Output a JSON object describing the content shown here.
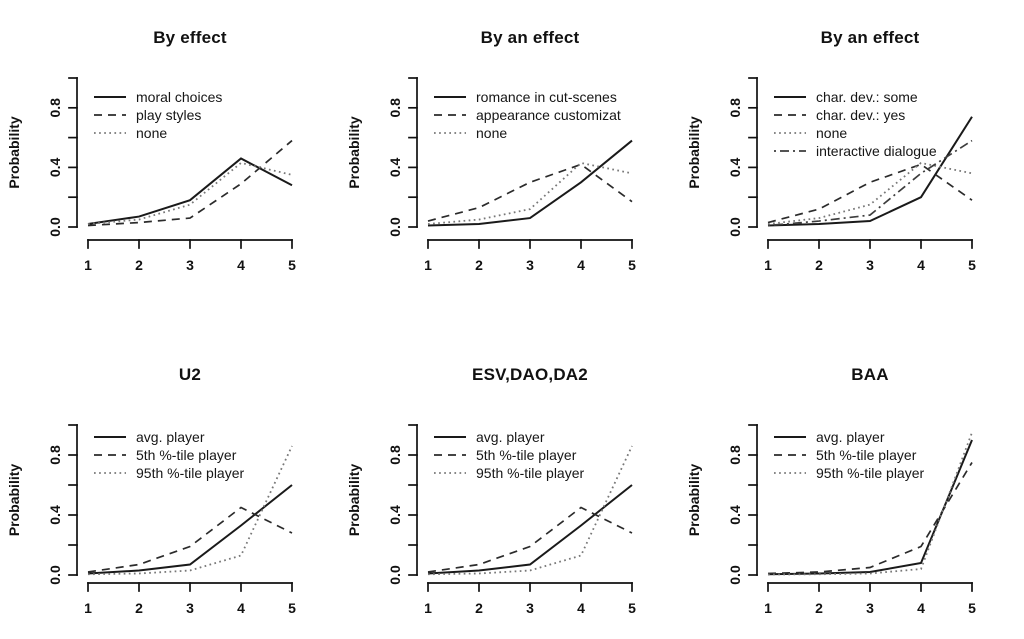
{
  "figure": {
    "background": "#ffffff",
    "axis_color": "#111111",
    "text_color": "#111111",
    "styles": {
      "solid": {
        "color": "#1a1a1a",
        "dash": "",
        "width": 2.0
      },
      "dashed": {
        "color": "#2b2b2b",
        "dash": "8 6",
        "width": 1.7
      },
      "dotted": {
        "color": "#787878",
        "dash": "1.7 3.4",
        "width": 1.8
      },
      "dashdot": {
        "color": "#3d3d3d",
        "dash": "2 4 9 4",
        "width": 1.7
      }
    }
  },
  "axes": {
    "ylabel": "Probability",
    "xtick_labels": [
      "1",
      "2",
      "3",
      "4",
      "5"
    ],
    "ytick_values": [
      0,
      0.2,
      0.4,
      0.6,
      0.8,
      1
    ],
    "ytick_labels": [
      "0.0",
      "",
      "0.4",
      "",
      "0.8",
      ""
    ],
    "xlim": [
      1,
      5
    ],
    "ylim": [
      0,
      1
    ],
    "grid": false
  },
  "chart_data": [
    {
      "type": "line",
      "title": "By effect",
      "ylabel": "Probability",
      "x": [
        1,
        2,
        3,
        4,
        5
      ],
      "legend_position": "top-left",
      "series": [
        {
          "name": "moral choices",
          "style": "solid",
          "values": [
            0.02,
            0.07,
            0.18,
            0.46,
            0.28
          ]
        },
        {
          "name": "play styles",
          "style": "dashed",
          "values": [
            0.01,
            0.03,
            0.06,
            0.29,
            0.58
          ]
        },
        {
          "name": "none",
          "style": "dotted",
          "values": [
            0.02,
            0.05,
            0.15,
            0.43,
            0.35
          ]
        }
      ]
    },
    {
      "type": "line",
      "title": "By an effect",
      "ylabel": "Probability",
      "x": [
        1,
        2,
        3,
        4,
        5
      ],
      "legend_position": "top-left",
      "series": [
        {
          "name": "romance in cut-scenes",
          "style": "solid",
          "values": [
            0.01,
            0.02,
            0.06,
            0.3,
            0.58
          ]
        },
        {
          "name": "appearance customizat",
          "style": "dashed",
          "values": [
            0.04,
            0.13,
            0.3,
            0.42,
            0.17
          ]
        },
        {
          "name": "none",
          "style": "dotted",
          "values": [
            0.02,
            0.05,
            0.12,
            0.43,
            0.36
          ]
        }
      ]
    },
    {
      "type": "line",
      "title": "By an effect",
      "ylabel": "Probability",
      "x": [
        1,
        2,
        3,
        4,
        5
      ],
      "legend_position": "top-left",
      "series": [
        {
          "name": "char. dev.: some",
          "style": "solid",
          "values": [
            0.01,
            0.02,
            0.04,
            0.2,
            0.74
          ]
        },
        {
          "name": "char. dev.: yes",
          "style": "dashed",
          "values": [
            0.03,
            0.12,
            0.3,
            0.42,
            0.18
          ]
        },
        {
          "name": "none",
          "style": "dotted",
          "values": [
            0.02,
            0.06,
            0.15,
            0.43,
            0.36
          ]
        },
        {
          "name": "interactive dialogue",
          "style": "dashdot",
          "values": [
            0.01,
            0.04,
            0.08,
            0.36,
            0.58
          ]
        }
      ]
    },
    {
      "type": "line",
      "title": "U2",
      "ylabel": "Probability",
      "x": [
        1,
        2,
        3,
        4,
        5
      ],
      "legend_position": "top-left",
      "series": [
        {
          "name": "avg. player",
          "style": "solid",
          "values": [
            0.01,
            0.03,
            0.07,
            0.33,
            0.6
          ]
        },
        {
          "name": "5th %-tile player",
          "style": "dashed",
          "values": [
            0.02,
            0.07,
            0.19,
            0.45,
            0.28
          ]
        },
        {
          "name": "95th %-tile player",
          "style": "dotted",
          "values": [
            0.005,
            0.01,
            0.03,
            0.13,
            0.86
          ]
        }
      ]
    },
    {
      "type": "line",
      "title": "ESV,DAO,DA2",
      "ylabel": "Probability",
      "x": [
        1,
        2,
        3,
        4,
        5
      ],
      "legend_position": "top-left",
      "series": [
        {
          "name": "avg. player",
          "style": "solid",
          "values": [
            0.01,
            0.03,
            0.07,
            0.33,
            0.6
          ]
        },
        {
          "name": "5th %-tile player",
          "style": "dashed",
          "values": [
            0.02,
            0.07,
            0.19,
            0.45,
            0.28
          ]
        },
        {
          "name": "95th %-tile player",
          "style": "dotted",
          "values": [
            0.005,
            0.01,
            0.03,
            0.13,
            0.86
          ]
        }
      ]
    },
    {
      "type": "line",
      "title": "BAA",
      "ylabel": "Probability",
      "x": [
        1,
        2,
        3,
        4,
        5
      ],
      "legend_position": "top-left",
      "series": [
        {
          "name": "avg. player",
          "style": "solid",
          "values": [
            0.005,
            0.01,
            0.02,
            0.08,
            0.9
          ]
        },
        {
          "name": "5th %-tile player",
          "style": "dashed",
          "values": [
            0.01,
            0.02,
            0.05,
            0.19,
            0.75
          ]
        },
        {
          "name": "95th %-tile player",
          "style": "dotted",
          "values": [
            0.003,
            0.005,
            0.01,
            0.04,
            0.95
          ]
        }
      ]
    }
  ]
}
